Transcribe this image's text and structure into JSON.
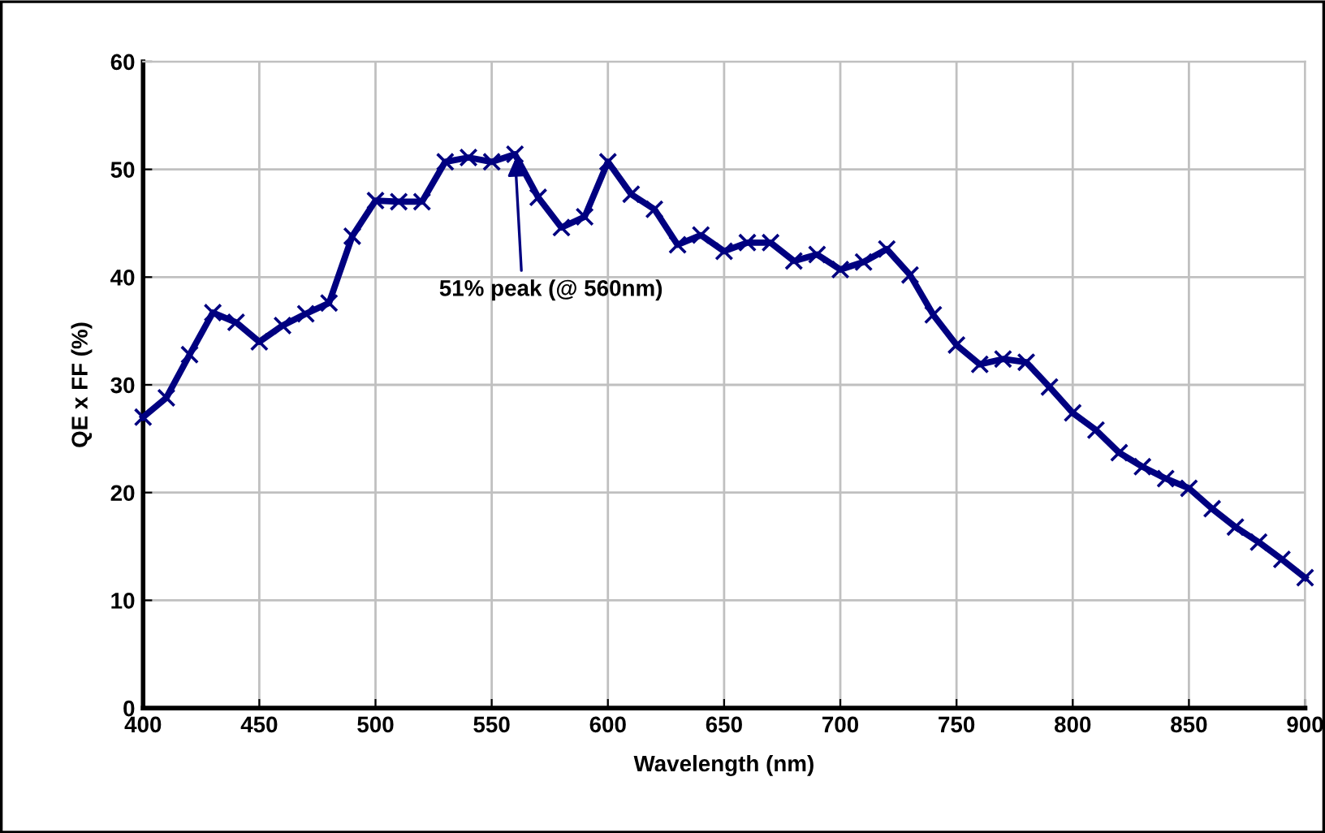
{
  "chart_data": {
    "type": "line",
    "xlabel": "Wavelength (nm)",
    "ylabel": "QE x FF (%)",
    "x": [
      400,
      410,
      420,
      430,
      440,
      450,
      460,
      470,
      480,
      490,
      500,
      510,
      520,
      530,
      540,
      550,
      560,
      570,
      580,
      590,
      600,
      610,
      620,
      630,
      640,
      650,
      660,
      670,
      680,
      690,
      700,
      710,
      720,
      730,
      740,
      750,
      760,
      770,
      780,
      790,
      800,
      810,
      820,
      830,
      840,
      850,
      860,
      870,
      880,
      890,
      900
    ],
    "series": [
      {
        "color": "#000080",
        "values": [
          27.0,
          28.8,
          32.8,
          36.7,
          35.8,
          34.0,
          35.5,
          36.6,
          37.6,
          43.8,
          47.1,
          47.0,
          47.0,
          50.7,
          51.1,
          50.7,
          51.4,
          47.4,
          44.6,
          45.6,
          50.7,
          47.7,
          46.3,
          43.0,
          43.9,
          42.4,
          43.2,
          43.2,
          41.5,
          42.1,
          40.7,
          41.4,
          42.6,
          40.2,
          36.5,
          33.7,
          31.9,
          32.4,
          32.1,
          29.8,
          27.4,
          25.8,
          23.7,
          22.4,
          21.3,
          20.4,
          18.5,
          16.8,
          15.4,
          13.8,
          12.1
        ]
      }
    ],
    "xlim": [
      400,
      900
    ],
    "xticks": [
      400,
      450,
      500,
      550,
      600,
      650,
      700,
      750,
      800,
      850,
      900
    ],
    "ylim": [
      0,
      60
    ],
    "yticks": [
      0,
      10,
      20,
      30,
      40,
      50,
      60
    ],
    "grid": true,
    "marker": "cross",
    "line_style": "solid",
    "legend": false,
    "annotations": [
      {
        "text": "51% peak (@ 560nm)",
        "x": 560,
        "y": 51.4
      }
    ]
  }
}
